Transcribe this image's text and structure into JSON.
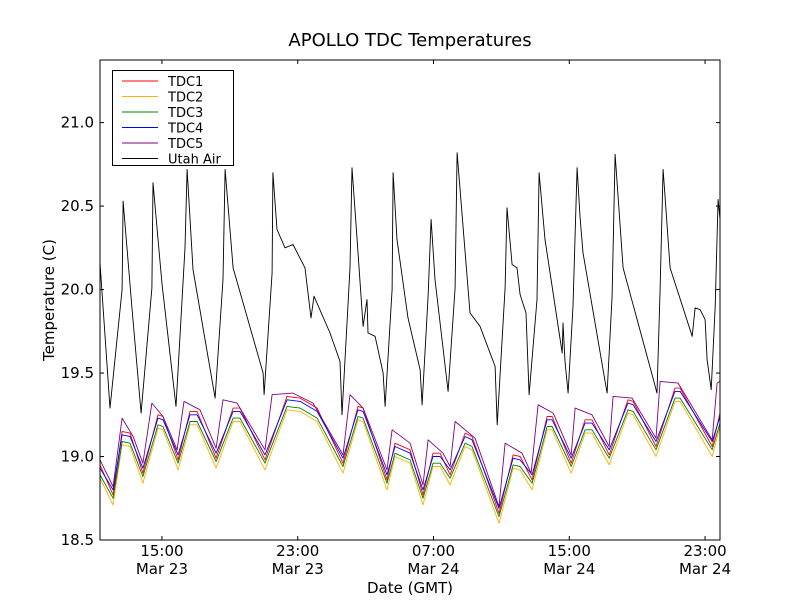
{
  "chart_data": {
    "type": "line",
    "title": "APOLLO TDC Temperatures",
    "xlabel": "Date (GMT)",
    "ylabel": "Temperature (C)",
    "x_units": "hours since Mar 23 00:00 GMT",
    "xlim": [
      11.35,
      47.88
    ],
    "ylim": [
      18.5,
      21.375
    ],
    "grid": false,
    "legend_placement": "top-left",
    "x_ticks": [
      {
        "value": 15,
        "time": "15:00",
        "date": "Mar 23"
      },
      {
        "value": 23,
        "time": "23:00",
        "date": "Mar 23"
      },
      {
        "value": 31,
        "time": "07:00",
        "date": "Mar 24"
      },
      {
        "value": 39,
        "time": "15:00",
        "date": "Mar 24"
      },
      {
        "value": 47,
        "time": "23:00",
        "date": "Mar 24"
      }
    ],
    "y_ticks": [
      {
        "value": 18.5,
        "label": "18.5"
      },
      {
        "value": 19.0,
        "label": "19.0"
      },
      {
        "value": 19.5,
        "label": "19.5"
      },
      {
        "value": 20.0,
        "label": "20.0"
      },
      {
        "value": 20.5,
        "label": "20.5"
      },
      {
        "value": 21.0,
        "label": "21.0"
      }
    ],
    "tdc_x": [
      11.35,
      12.12,
      12.65,
      13.12,
      13.88,
      14.77,
      15.06,
      15.95,
      16.65,
      17.07,
      18.19,
      19.19,
      19.6,
      21.07,
      22.37,
      23.14,
      24.14,
      25.67,
      26.55,
      26.85,
      28.26,
      28.73,
      29.62,
      30.38,
      30.97,
      31.39,
      31.98,
      32.86,
      33.27,
      34.86,
      35.69,
      36.1,
      36.81,
      37.69,
      37.99,
      39.11,
      39.93,
      40.34,
      41.35,
      42.46,
      42.76,
      44.11,
      45.23,
      45.53,
      47.42,
      47.88
    ],
    "series": [
      {
        "name": "TDC1",
        "color": "#ff0000",
        "values": [
          18.95,
          18.77,
          19.15,
          19.14,
          18.9,
          19.25,
          19.24,
          18.98,
          19.27,
          19.27,
          18.99,
          19.29,
          19.29,
          18.98,
          19.36,
          19.35,
          19.29,
          18.96,
          19.3,
          19.29,
          18.86,
          19.08,
          19.04,
          18.77,
          19.02,
          19.02,
          18.89,
          19.14,
          19.12,
          18.66,
          19.01,
          19.0,
          18.86,
          19.24,
          19.24,
          18.96,
          19.22,
          19.22,
          19.01,
          19.34,
          19.33,
          19.06,
          19.41,
          19.41,
          19.06,
          19.26
        ]
      },
      {
        "name": "TDC2",
        "color": "#ffb000",
        "values": [
          18.87,
          18.71,
          19.07,
          19.06,
          18.84,
          19.17,
          19.16,
          18.92,
          19.19,
          19.19,
          18.93,
          19.21,
          19.21,
          18.92,
          19.28,
          19.27,
          19.21,
          18.9,
          19.22,
          19.21,
          18.8,
          19.0,
          18.96,
          18.71,
          18.94,
          18.94,
          18.83,
          19.06,
          19.04,
          18.6,
          18.93,
          18.92,
          18.8,
          19.16,
          19.16,
          18.9,
          19.14,
          19.14,
          18.95,
          19.26,
          19.25,
          19.0,
          19.33,
          19.33,
          19.0,
          19.18
        ]
      },
      {
        "name": "TDC3",
        "color": "#008000",
        "values": [
          18.89,
          18.75,
          19.09,
          19.08,
          18.88,
          19.19,
          19.18,
          18.96,
          19.21,
          19.21,
          18.97,
          19.23,
          19.23,
          18.96,
          19.3,
          19.29,
          19.23,
          18.94,
          19.24,
          19.23,
          18.84,
          19.02,
          18.98,
          18.75,
          18.96,
          18.96,
          18.87,
          19.08,
          19.06,
          18.64,
          18.95,
          18.94,
          18.84,
          19.18,
          19.18,
          18.94,
          19.16,
          19.16,
          18.99,
          19.28,
          19.27,
          19.04,
          19.35,
          19.35,
          19.04,
          19.2
        ]
      },
      {
        "name": "TDC4",
        "color": "#0000ff",
        "values": [
          18.93,
          18.8,
          19.13,
          19.12,
          18.93,
          19.23,
          19.22,
          19.01,
          19.25,
          19.25,
          19.02,
          19.27,
          19.27,
          19.01,
          19.34,
          19.33,
          19.27,
          18.99,
          19.28,
          19.27,
          18.89,
          19.06,
          19.02,
          18.8,
          19.0,
          19.0,
          18.92,
          19.12,
          19.1,
          18.69,
          18.99,
          18.98,
          18.89,
          19.22,
          19.22,
          18.99,
          19.2,
          19.2,
          19.04,
          19.32,
          19.31,
          19.09,
          19.39,
          19.39,
          19.09,
          19.24
        ]
      },
      {
        "name": "TDC5",
        "color": "#800080",
        "x": [
          11.35,
          12.12,
          12.65,
          13.3,
          13.88,
          14.41,
          15.06,
          15.89,
          16.3,
          17.24,
          18.19,
          18.6,
          19.42,
          21.07,
          21.49,
          22.72,
          23.9,
          25.67,
          26.08,
          26.85,
          28.26,
          28.56,
          29.62,
          30.38,
          30.68,
          31.56,
          31.98,
          32.27,
          33.45,
          34.86,
          35.22,
          36.22,
          36.75,
          37.16,
          38.05,
          39.11,
          39.34,
          40.34,
          41.35,
          41.58,
          42.7,
          44.11,
          44.35,
          45.41,
          47.42,
          47.71,
          47.88
        ],
        "values": [
          18.98,
          18.82,
          19.23,
          19.12,
          18.96,
          19.32,
          19.24,
          19.04,
          19.33,
          19.28,
          19.05,
          19.34,
          19.32,
          19.04,
          19.37,
          19.38,
          19.32,
          19.01,
          19.37,
          19.29,
          18.92,
          19.16,
          19.08,
          18.83,
          19.1,
          19.02,
          18.94,
          19.21,
          19.11,
          18.7,
          19.08,
          19.02,
          18.9,
          19.31,
          19.26,
          19.01,
          19.29,
          19.25,
          19.06,
          19.36,
          19.35,
          19.11,
          19.45,
          19.44,
          19.1,
          19.44,
          19.45
        ]
      },
      {
        "name": "Utah Air",
        "color": "#000000",
        "x": [
          11.35,
          11.94,
          12.65,
          12.71,
          13.24,
          13.77,
          14.41,
          14.47,
          15.0,
          15.83,
          16.36,
          16.48,
          16.83,
          18.13,
          18.6,
          18.72,
          19.19,
          20.96,
          21.02,
          21.49,
          21.54,
          21.78,
          22.25,
          22.72,
          23.43,
          23.78,
          23.96,
          24.9,
          25.49,
          25.61,
          26.08,
          26.2,
          26.5,
          26.85,
          27.08,
          27.14,
          27.56,
          28.03,
          28.15,
          28.56,
          28.62,
          28.85,
          29.5,
          30.21,
          30.33,
          30.68,
          30.86,
          31.09,
          31.86,
          32.27,
          32.39,
          33.15,
          33.74,
          34.63,
          34.75,
          35.22,
          35.33,
          35.63,
          35.92,
          36.1,
          36.45,
          36.63,
          37.1,
          37.22,
          37.57,
          38.58,
          38.63,
          38.75,
          38.93,
          39.22,
          39.46,
          39.64,
          39.81,
          41.23,
          41.52,
          41.7,
          42.17,
          43.88,
          44.17,
          44.35,
          44.53,
          44.94,
          46.24,
          46.41,
          46.71,
          47.0,
          47.12,
          47.36,
          47.6,
          47.77,
          47.88
        ],
        "values": [
          20.16,
          19.29,
          20.0,
          20.53,
          19.88,
          19.26,
          20.01,
          20.64,
          20.04,
          19.3,
          20.25,
          20.72,
          20.12,
          19.35,
          20.06,
          20.72,
          20.13,
          19.5,
          19.37,
          20.1,
          20.7,
          20.36,
          20.25,
          20.27,
          20.13,
          19.83,
          19.96,
          19.74,
          19.57,
          19.25,
          20.13,
          20.73,
          20.3,
          19.78,
          19.94,
          19.74,
          19.72,
          19.5,
          19.3,
          20.0,
          20.7,
          20.3,
          19.83,
          19.52,
          19.31,
          19.96,
          20.42,
          20.06,
          19.39,
          20.01,
          20.82,
          19.86,
          19.78,
          19.54,
          19.19,
          20.01,
          20.49,
          20.15,
          20.13,
          19.97,
          19.86,
          19.37,
          19.94,
          20.7,
          20.3,
          19.62,
          19.8,
          19.57,
          19.38,
          19.9,
          20.73,
          20.43,
          20.22,
          19.38,
          19.96,
          20.81,
          20.13,
          19.49,
          19.38,
          20.0,
          20.72,
          20.13,
          19.72,
          19.89,
          19.88,
          19.82,
          19.58,
          19.4,
          19.9,
          20.54,
          20.42
        ]
      }
    ]
  }
}
